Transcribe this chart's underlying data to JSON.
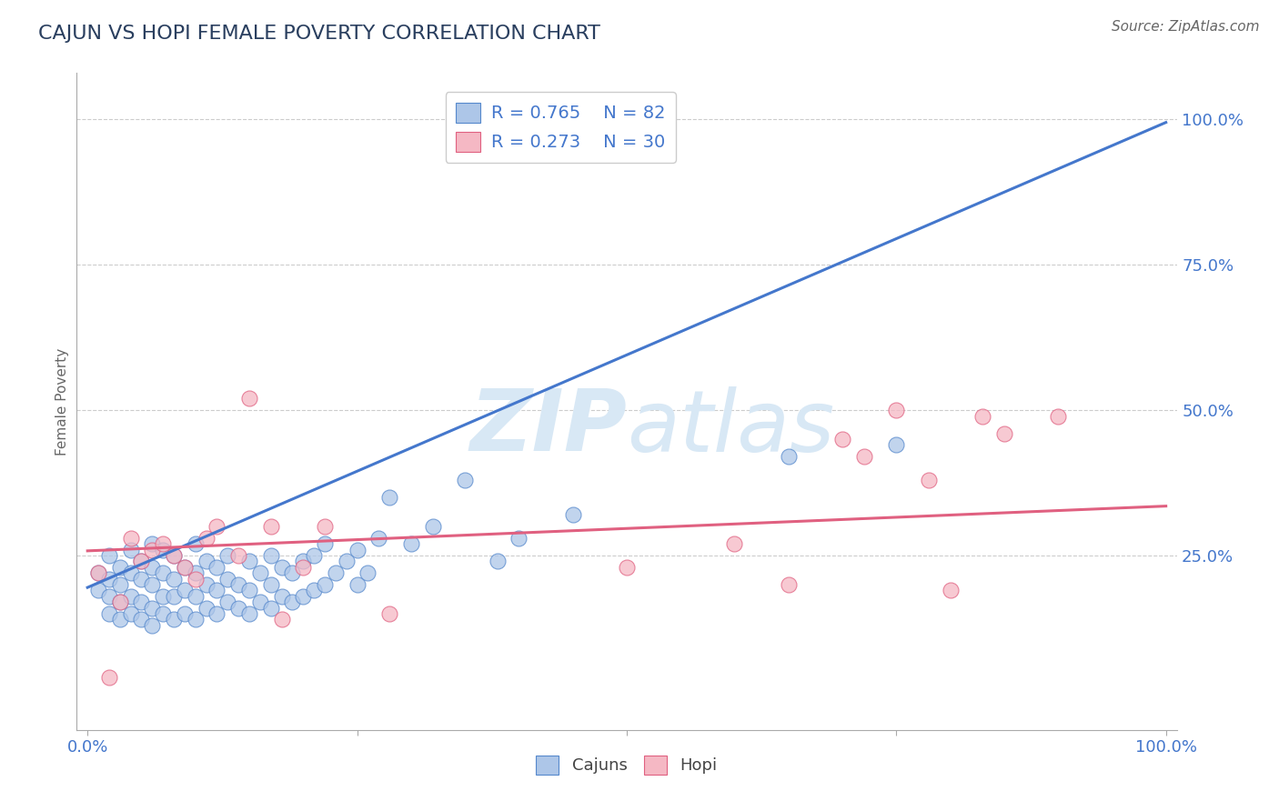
{
  "title": "CAJUN VS HOPI FEMALE POVERTY CORRELATION CHART",
  "source_text": "Source: ZipAtlas.com",
  "ylabel": "Female Poverty",
  "xlim": [
    -0.01,
    1.01
  ],
  "ylim": [
    -0.05,
    1.08
  ],
  "xticks": [
    0,
    0.25,
    0.5,
    0.75,
    1.0
  ],
  "xtick_labels": [
    "0.0%",
    "",
    "",
    "",
    "100.0%"
  ],
  "yticks": [
    0.25,
    0.5,
    0.75,
    1.0
  ],
  "ytick_labels": [
    "25.0%",
    "50.0%",
    "75.0%",
    "100.0%"
  ],
  "legend_line1": "R = 0.765    N = 82",
  "legend_line2": "R = 0.273    N = 30",
  "cajun_color": "#adc6e8",
  "cajun_edge_color": "#5588cc",
  "hopi_color": "#f5b8c4",
  "hopi_edge_color": "#e06080",
  "cajun_line_color": "#4477cc",
  "hopi_line_color": "#e06080",
  "label_color": "#4477cc",
  "watermark_color": "#d8e8f5",
  "background_color": "#ffffff",
  "grid_color": "#cccccc",
  "cajun_x": [
    0.01,
    0.01,
    0.02,
    0.02,
    0.02,
    0.02,
    0.03,
    0.03,
    0.03,
    0.03,
    0.04,
    0.04,
    0.04,
    0.04,
    0.05,
    0.05,
    0.05,
    0.05,
    0.06,
    0.06,
    0.06,
    0.06,
    0.06,
    0.07,
    0.07,
    0.07,
    0.07,
    0.08,
    0.08,
    0.08,
    0.08,
    0.09,
    0.09,
    0.09,
    0.1,
    0.1,
    0.1,
    0.1,
    0.11,
    0.11,
    0.11,
    0.12,
    0.12,
    0.12,
    0.13,
    0.13,
    0.13,
    0.14,
    0.14,
    0.15,
    0.15,
    0.15,
    0.16,
    0.16,
    0.17,
    0.17,
    0.17,
    0.18,
    0.18,
    0.19,
    0.19,
    0.2,
    0.2,
    0.21,
    0.21,
    0.22,
    0.22,
    0.23,
    0.24,
    0.25,
    0.25,
    0.26,
    0.27,
    0.28,
    0.3,
    0.32,
    0.35,
    0.38,
    0.4,
    0.45,
    0.65,
    0.75
  ],
  "cajun_y": [
    0.19,
    0.22,
    0.15,
    0.18,
    0.21,
    0.25,
    0.14,
    0.17,
    0.2,
    0.23,
    0.15,
    0.18,
    0.22,
    0.26,
    0.14,
    0.17,
    0.21,
    0.24,
    0.13,
    0.16,
    0.2,
    0.23,
    0.27,
    0.15,
    0.18,
    0.22,
    0.26,
    0.14,
    0.18,
    0.21,
    0.25,
    0.15,
    0.19,
    0.23,
    0.14,
    0.18,
    0.22,
    0.27,
    0.16,
    0.2,
    0.24,
    0.15,
    0.19,
    0.23,
    0.17,
    0.21,
    0.25,
    0.16,
    0.2,
    0.15,
    0.19,
    0.24,
    0.17,
    0.22,
    0.16,
    0.2,
    0.25,
    0.18,
    0.23,
    0.17,
    0.22,
    0.18,
    0.24,
    0.19,
    0.25,
    0.2,
    0.27,
    0.22,
    0.24,
    0.2,
    0.26,
    0.22,
    0.28,
    0.35,
    0.27,
    0.3,
    0.38,
    0.24,
    0.28,
    0.32,
    0.42,
    0.44
  ],
  "hopi_x": [
    0.01,
    0.02,
    0.03,
    0.04,
    0.05,
    0.06,
    0.07,
    0.08,
    0.09,
    0.1,
    0.11,
    0.12,
    0.14,
    0.15,
    0.17,
    0.18,
    0.2,
    0.22,
    0.28,
    0.5,
    0.6,
    0.65,
    0.7,
    0.72,
    0.75,
    0.78,
    0.8,
    0.83,
    0.85,
    0.9
  ],
  "hopi_y": [
    0.22,
    0.04,
    0.17,
    0.28,
    0.24,
    0.26,
    0.27,
    0.25,
    0.23,
    0.21,
    0.28,
    0.3,
    0.25,
    0.52,
    0.3,
    0.14,
    0.23,
    0.3,
    0.15,
    0.23,
    0.27,
    0.2,
    0.45,
    0.42,
    0.5,
    0.38,
    0.19,
    0.49,
    0.46,
    0.49
  ],
  "blue_line_x": [
    0.0,
    1.0
  ],
  "blue_line_y": [
    0.195,
    0.995
  ],
  "pink_line_x": [
    0.0,
    1.0
  ],
  "pink_line_y": [
    0.258,
    0.335
  ]
}
